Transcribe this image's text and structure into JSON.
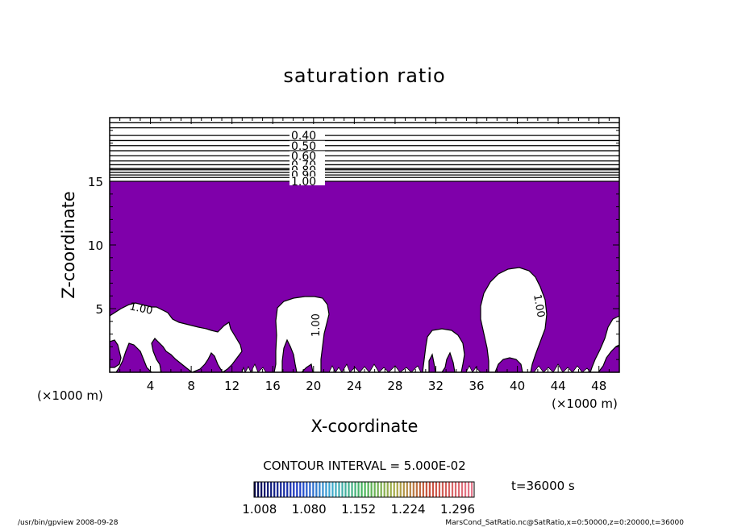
{
  "chart_data": {
    "type": "contour",
    "title": "saturation ratio",
    "xlabel": "X-coordinate",
    "ylabel": "Z-coordinate",
    "x_unit": "(×1000 m)",
    "xlim": [
      0,
      50
    ],
    "ylim": [
      0,
      20
    ],
    "x_ticks": [
      4,
      8,
      12,
      16,
      20,
      24,
      28,
      32,
      36,
      40,
      44,
      48
    ],
    "y_ticks": [
      5,
      10,
      15
    ],
    "fill_color": "#7f00aa",
    "fill_region": {
      "description": "saturation ratio >= 1.00",
      "z_range": [
        0,
        15
      ]
    },
    "contour_levels": [
      {
        "label": "0.40",
        "z": 18.6
      },
      {
        "label": "0.50",
        "z": 17.8
      },
      {
        "label": "0.60",
        "z": 17.0
      },
      {
        "label": "0.70",
        "z": 16.3
      },
      {
        "label": "0.80",
        "z": 15.9
      },
      {
        "label": "0.90",
        "z": 15.5
      },
      {
        "label": "1.00",
        "z": 15.0
      }
    ],
    "extra_contour_z": [
      19.6,
      19.2,
      18.2,
      17.4,
      16.6,
      16.0,
      15.7,
      15.3
    ],
    "inline_labels": [
      "1.00",
      "1.00",
      "1.00"
    ],
    "contour_interval_text": "CONTOUR INTERVAL = 5.000E-02",
    "colorbar": {
      "ticks": [
        "1.008",
        "1.080",
        "1.152",
        "1.224",
        "1.296"
      ],
      "min": 1.0,
      "max": 1.32
    },
    "time_label": "t=36000 s"
  },
  "footer": {
    "left": "/usr/bin/gpview   2008-09-28",
    "right": "MarsCond_SatRatio.nc@SatRatio,x=0:50000,z=0:20000,t=36000"
  }
}
